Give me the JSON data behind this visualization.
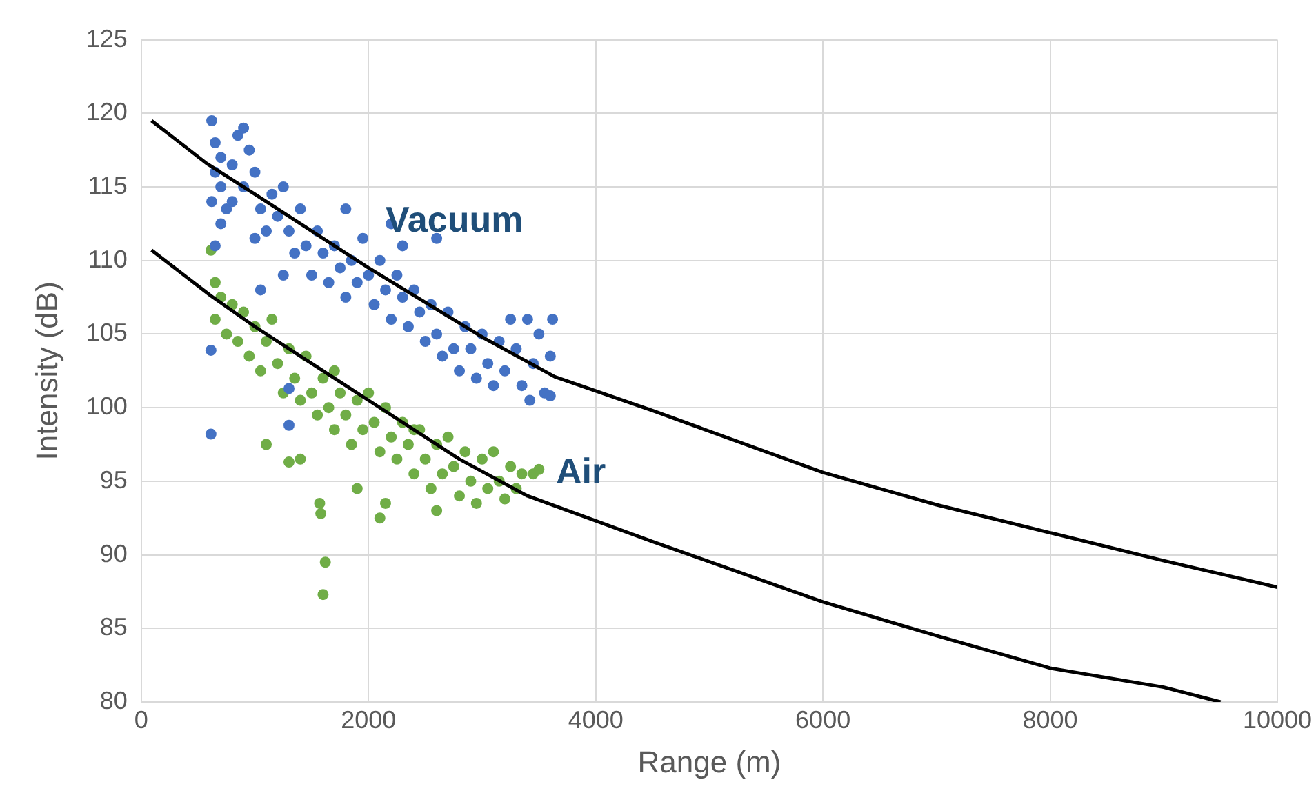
{
  "chart_data": {
    "type": "scatter",
    "xlabel": "Range (m)",
    "ylabel": "Intensity (dB)",
    "xlim": [
      0,
      10000
    ],
    "xticks": [
      0,
      2000,
      4000,
      6000,
      8000,
      10000
    ],
    "ylim": [
      80,
      125
    ],
    "yticks": [
      80,
      85,
      90,
      95,
      100,
      105,
      110,
      115,
      120,
      125
    ],
    "grid": true,
    "legend": false,
    "marker": "circle",
    "annotations": [
      "Vacuum",
      "Air"
    ],
    "series": [
      {
        "color": "#4472c4",
        "x": [
          620,
          650,
          700,
          650,
          700,
          620,
          750,
          800,
          850,
          900,
          950,
          900,
          800,
          700,
          650,
          1000,
          1050,
          1100,
          1000,
          1150,
          1200,
          1250,
          1300,
          1350,
          1400,
          1450,
          1500,
          1550,
          1600,
          1650,
          1700,
          1750,
          1800,
          1850,
          1900,
          1950,
          2000,
          2050,
          2100,
          2150,
          2200,
          2250,
          2300,
          2350,
          2400,
          2450,
          2500,
          2550,
          2600,
          2650,
          2700,
          2750,
          2800,
          2850,
          2900,
          2950,
          3000,
          3050,
          3100,
          3150,
          3200,
          3250,
          3300,
          3350,
          3400,
          3450,
          3500,
          3550,
          3600,
          3620,
          3600,
          3420,
          2200,
          2300,
          1800,
          1250,
          1050,
          613,
          613,
          1300,
          1300,
          2600
        ],
        "values": [
          119.5,
          118,
          117,
          116,
          115,
          114,
          113.5,
          116.5,
          118.5,
          119,
          117.5,
          115,
          114,
          112.5,
          111,
          116,
          113.5,
          112,
          111.5,
          114.5,
          113,
          115,
          112,
          110.5,
          113.5,
          111,
          109,
          112,
          110.5,
          108.5,
          111,
          109.5,
          107.5,
          110,
          108.5,
          111.5,
          109,
          107,
          110,
          108,
          106,
          109,
          107.5,
          105.5,
          108,
          106.5,
          104.5,
          107,
          105,
          103.5,
          106.5,
          104,
          102.5,
          105.5,
          104,
          102,
          105,
          103,
          101.5,
          104.5,
          102.5,
          106,
          104,
          101.5,
          106,
          103,
          105,
          101,
          103.5,
          106,
          100.8,
          100.5,
          112.5,
          111,
          113.5,
          109,
          108,
          103.9,
          98.2,
          98.8,
          101.3,
          111.5
        ]
      },
      {
        "color": "#70ad47",
        "x": [
          613,
          650,
          700,
          650,
          750,
          800,
          850,
          900,
          950,
          1000,
          1050,
          1100,
          1150,
          1200,
          1250,
          1300,
          1350,
          1400,
          1450,
          1500,
          1550,
          1600,
          1650,
          1700,
          1750,
          1800,
          1850,
          1900,
          1950,
          2000,
          2050,
          2100,
          2150,
          2200,
          2250,
          2300,
          2350,
          2400,
          2450,
          2500,
          2550,
          2600,
          2650,
          2700,
          2750,
          2800,
          2850,
          2900,
          2950,
          3000,
          3050,
          3100,
          3150,
          3200,
          3250,
          3300,
          3350,
          3450,
          3500,
          1600,
          1620,
          1580,
          1570,
          1400,
          1100,
          2100,
          2150,
          1900,
          2600,
          2400,
          1300,
          1700
        ],
        "values": [
          110.7,
          108.5,
          107.5,
          106,
          105,
          107,
          104.5,
          106.5,
          103.5,
          105.5,
          102.5,
          104.5,
          106,
          103,
          101,
          104,
          102,
          100.5,
          103.5,
          101,
          99.5,
          102,
          100,
          98.5,
          101,
          99.5,
          97.5,
          100.5,
          98.5,
          101,
          99,
          97,
          100,
          98,
          96.5,
          99,
          97.5,
          95.5,
          98.5,
          96.5,
          94.5,
          97.5,
          95.5,
          98,
          96,
          94,
          97,
          95,
          93.5,
          96.5,
          94.5,
          97,
          95,
          93.8,
          96,
          94.5,
          95.5,
          95.5,
          95.8,
          87.3,
          89.5,
          92.8,
          93.5,
          96.5,
          97.5,
          92.5,
          93.5,
          94.5,
          93,
          98.5,
          96.3,
          102.5
        ]
      },
      {
        "type": "line",
        "marker": "none",
        "color": "#000000",
        "x": [
          90,
          574,
          1000,
          2000,
          3000,
          3640,
          4500,
          6000,
          7000,
          8000,
          9000,
          10000
        ],
        "values": [
          119.5,
          116.6,
          114.5,
          109.5,
          104.8,
          102.1,
          99.8,
          95.6,
          93.4,
          91.5,
          89.6,
          87.8
        ]
      },
      {
        "type": "line",
        "marker": "none",
        "color": "#000000",
        "x": [
          90,
          613,
          1000,
          2000,
          2800,
          3400,
          4500,
          6000,
          7000,
          8000,
          9000,
          9500
        ],
        "values": [
          110.7,
          107.6,
          105.5,
          100.5,
          96.5,
          94.0,
          90.9,
          86.8,
          84.5,
          82.3,
          81.0,
          80.0
        ]
      }
    ]
  }
}
